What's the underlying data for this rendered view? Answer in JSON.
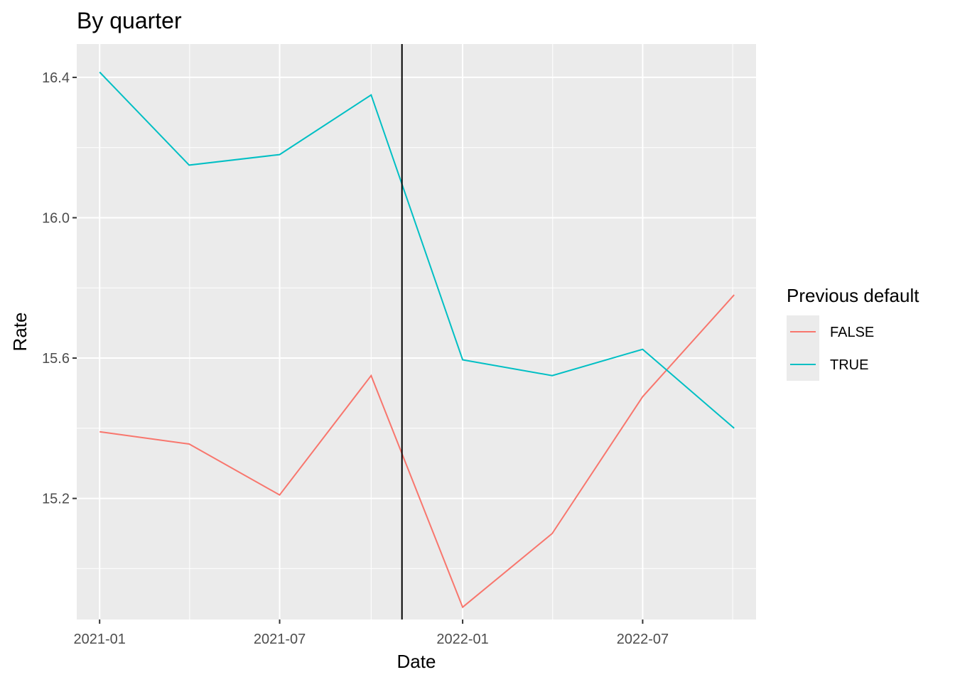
{
  "chart_data": {
    "type": "line",
    "title": "By quarter",
    "xlabel": "Date",
    "ylabel": "Rate",
    "x": [
      "2021-01-01",
      "2021-04-01",
      "2021-07-01",
      "2021-10-01",
      "2022-01-01",
      "2022-04-01",
      "2022-07-01",
      "2022-10-01"
    ],
    "xlim": [
      "2020-12-09",
      "2022-10-23"
    ],
    "ylim": [
      14.855,
      16.495
    ],
    "x_ticks": [
      {
        "date": "2021-01-01",
        "label": "2021-01"
      },
      {
        "date": "2021-07-01",
        "label": "2021-07"
      },
      {
        "date": "2022-01-01",
        "label": "2022-01"
      },
      {
        "date": "2022-07-01",
        "label": "2022-07"
      }
    ],
    "y_ticks": [
      {
        "value": 15.2,
        "label": "15.2"
      },
      {
        "value": 15.6,
        "label": "15.6"
      },
      {
        "value": 16.0,
        "label": "16.0"
      },
      {
        "value": 16.4,
        "label": "16.4"
      }
    ],
    "vline": "2021-11-01",
    "legend": {
      "title": "Previous default",
      "position": "right"
    },
    "series": [
      {
        "name": "FALSE",
        "color": "#F8766D",
        "values": [
          15.39,
          15.355,
          15.21,
          15.55,
          14.89,
          15.1,
          15.49,
          15.78
        ]
      },
      {
        "name": "TRUE",
        "color": "#00BFC4",
        "values": [
          16.415,
          16.15,
          16.18,
          16.35,
          15.595,
          15.55,
          15.625,
          15.4
        ]
      }
    ],
    "grid": true,
    "panel_background": "#EBEBEB",
    "vline_color": "#000000"
  }
}
